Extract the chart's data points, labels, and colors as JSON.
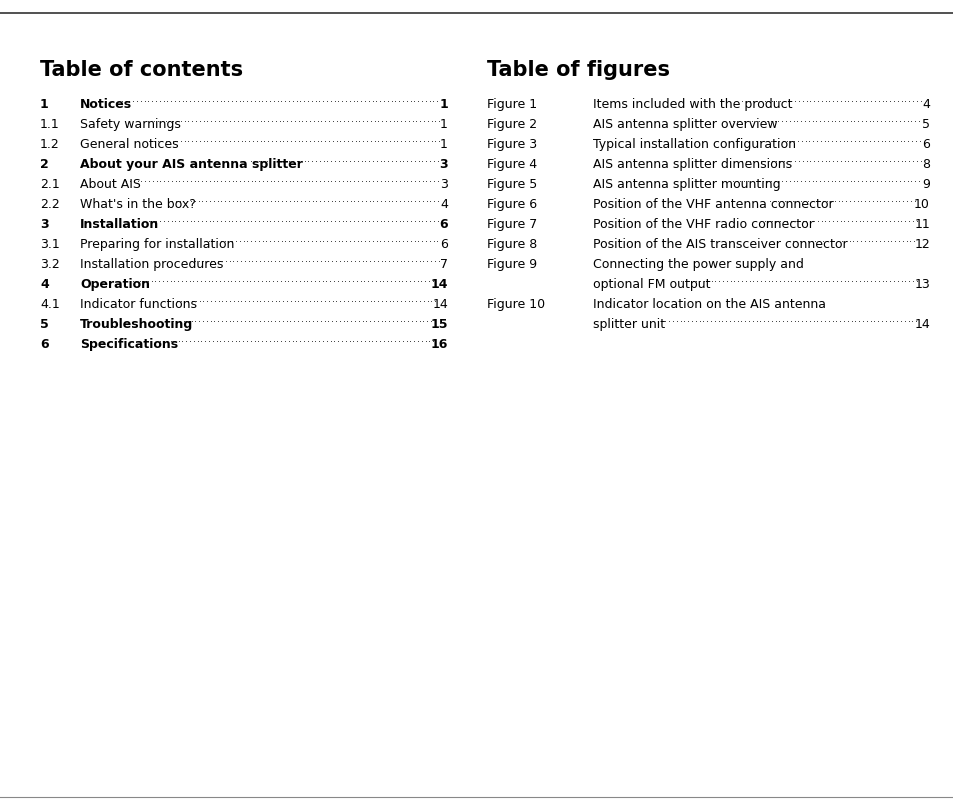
{
  "bg_color": "#ffffff",
  "top_line_color": "#555555",
  "bottom_line_color": "#555555",
  "toc_title": "Table of contents",
  "tof_title": "Table of figures",
  "toc_entries": [
    {
      "num": "1",
      "text": "Notices",
      "page": "1",
      "bold": true
    },
    {
      "num": "1.1",
      "text": "Safety warnings",
      "page": "1",
      "bold": false
    },
    {
      "num": "1.2",
      "text": "General notices",
      "page": "1",
      "bold": false
    },
    {
      "num": "2",
      "text": "About your AIS antenna splitter",
      "page": "3",
      "bold": true
    },
    {
      "num": "2.1",
      "text": "About AIS",
      "page": "3",
      "bold": false
    },
    {
      "num": "2.2",
      "text": "What's in the box?",
      "page": "4",
      "bold": false
    },
    {
      "num": "3",
      "text": "Installation",
      "page": "6",
      "bold": true
    },
    {
      "num": "3.1",
      "text": "Preparing for installation",
      "page": "6",
      "bold": false
    },
    {
      "num": "3.2",
      "text": "Installation procedures",
      "page": "7",
      "bold": false
    },
    {
      "num": "4",
      "text": "Operation",
      "page": "14",
      "bold": true
    },
    {
      "num": "4.1",
      "text": "Indicator functions",
      "page": "14",
      "bold": false
    },
    {
      "num": "5",
      "text": "Troubleshooting",
      "page": "15",
      "bold": true
    },
    {
      "num": "6",
      "text": "Specifications",
      "page": "16",
      "bold": true
    }
  ],
  "tof_entries": [
    {
      "num": "Figure 1",
      "lines": [
        "Items included with the product"
      ],
      "page": "4"
    },
    {
      "num": "Figure 2",
      "lines": [
        "AIS antenna splitter overview"
      ],
      "page": "5"
    },
    {
      "num": "Figure 3",
      "lines": [
        "Typical installation configuration"
      ],
      "page": "6"
    },
    {
      "num": "Figure 4",
      "lines": [
        "AIS antenna splitter dimensions"
      ],
      "page": "8"
    },
    {
      "num": "Figure 5",
      "lines": [
        "AIS antenna splitter mounting"
      ],
      "page": "9"
    },
    {
      "num": "Figure 6",
      "lines": [
        "Position of the VHF antenna connector"
      ],
      "page": "10"
    },
    {
      "num": "Figure 7",
      "lines": [
        "Position of the VHF radio connector"
      ],
      "page": "11"
    },
    {
      "num": "Figure 8",
      "lines": [
        "Position of the AIS transceiver connector"
      ],
      "page": "12"
    },
    {
      "num": "Figure 9",
      "lines": [
        "Connecting the power supply and",
        "optional FM output"
      ],
      "page": "13"
    },
    {
      "num": "Figure 10",
      "lines": [
        "Indicator location on the AIS antenna",
        "splitter unit"
      ],
      "page": "14"
    }
  ]
}
